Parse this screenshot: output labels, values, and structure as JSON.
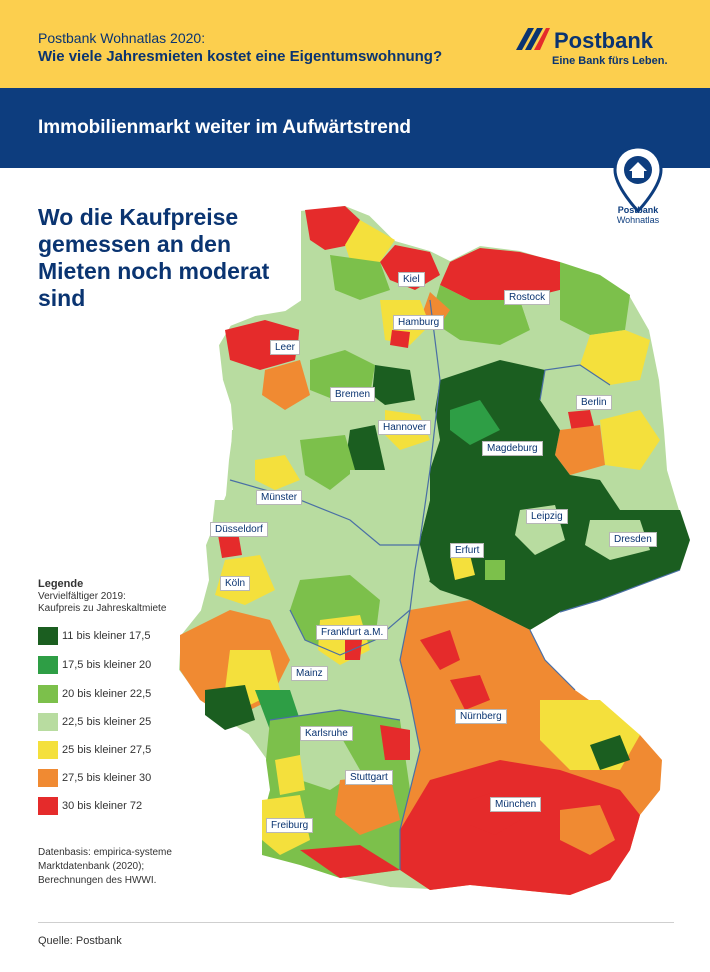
{
  "header": {
    "subtitle": "Postbank Wohnatlas 2020:",
    "title": "Wie viele Jahresmieten kostet eine Eigentumswohnung?",
    "logo_name": "Postbank",
    "logo_slogan": "Eine Bank fürs Leben."
  },
  "banner": {
    "title": "Immobilienmarkt weiter im Aufwärtstrend",
    "pin_label_line1": "Postbank",
    "pin_label_line2": "Wohnatlas"
  },
  "headline": "Wo die Kaufpreise gemessen an den Mieten noch moderat sind",
  "legend": {
    "title": "Legende",
    "subtitle_line1": "Vervielfältiger 2019:",
    "subtitle_line2": "Kaufpreis zu Jahreskaltmiete",
    "items": [
      {
        "label": "11 bis kleiner 17,5",
        "color": "#1b5e20"
      },
      {
        "label": "17,5 bis kleiner 20",
        "color": "#2e9e45"
      },
      {
        "label": "20 bis kleiner 22,5",
        "color": "#7cc04b"
      },
      {
        "label": "22,5 bis kleiner 25",
        "color": "#b8dca0"
      },
      {
        "label": "25 bis kleiner 27,5",
        "color": "#f4e03c"
      },
      {
        "label": "27,5 bis kleiner 30",
        "color": "#f08a32"
      },
      {
        "label": "30 bis kleiner 72",
        "color": "#e52b2b"
      }
    ]
  },
  "cities": [
    {
      "name": "Kiel"
    },
    {
      "name": "Rostock"
    },
    {
      "name": "Hamburg"
    },
    {
      "name": "Leer"
    },
    {
      "name": "Bremen"
    },
    {
      "name": "Berlin"
    },
    {
      "name": "Hannover"
    },
    {
      "name": "Magdeburg"
    },
    {
      "name": "Münster"
    },
    {
      "name": "Düsseldorf"
    },
    {
      "name": "Leipzig"
    },
    {
      "name": "Dresden"
    },
    {
      "name": "Erfurt"
    },
    {
      "name": "Köln"
    },
    {
      "name": "Frankfurt a.M."
    },
    {
      "name": "Mainz"
    },
    {
      "name": "Nürnberg"
    },
    {
      "name": "Karlsruhe"
    },
    {
      "name": "Stuttgart"
    },
    {
      "name": "München"
    },
    {
      "name": "Freiburg"
    }
  ],
  "datasource": "Datenbasis: empirica-systeme Marktdatenbank (2020); Berechnungen des HWWI.",
  "footer": "Quelle: Postbank"
}
